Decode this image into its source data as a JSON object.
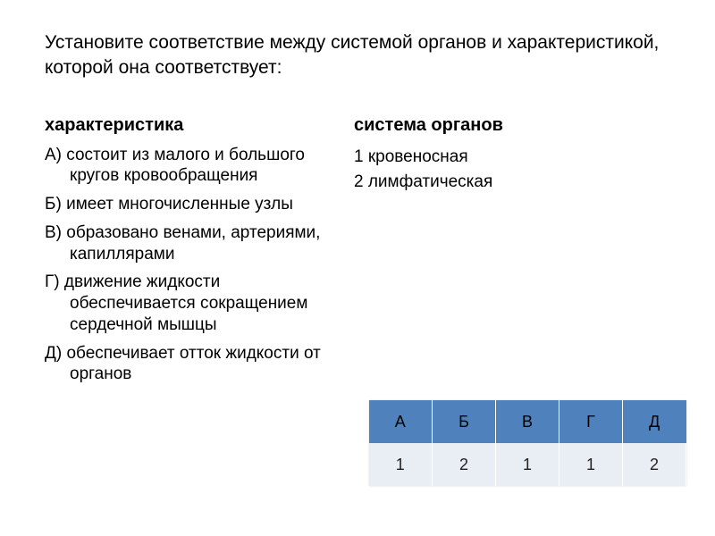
{
  "title": "Установите соответствие между системой органов и характеристикой, которой она соответствует:",
  "left": {
    "heading": "характеристика",
    "items": [
      "А) состоит из малого и большого кругов кровообращения",
      "Б) имеет многочисленные узлы",
      "В) образовано венами, артериями, капиллярами",
      "Г) движение жидкости обеспечивается сокращением сердечной мышцы",
      "Д) обеспечивает отток жидкости от органов"
    ]
  },
  "right": {
    "heading": "система органов",
    "items": [
      "1 кровеносная",
      "2 лимфатическая"
    ]
  },
  "answer_table": {
    "header_bg": "#4f81bd",
    "value_bg": "#e9edf4",
    "columns": [
      "А",
      "Б",
      "В",
      "Г",
      "Д"
    ],
    "values": [
      "1",
      "2",
      "1",
      "1",
      "2"
    ]
  }
}
